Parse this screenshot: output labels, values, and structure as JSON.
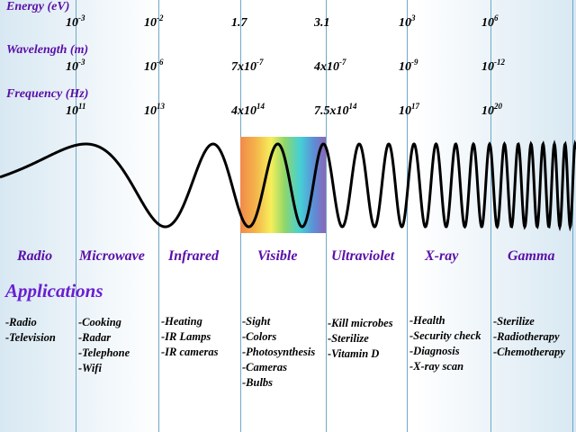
{
  "rows": {
    "energy": {
      "label": "Energy (eV)",
      "values": [
        {
          "base": "10",
          "exp": "-3"
        },
        {
          "base": "10",
          "exp": "-2"
        },
        {
          "base": "1.7",
          "exp": ""
        },
        {
          "base": "3.1",
          "exp": ""
        },
        {
          "base": "10",
          "exp": "3"
        },
        {
          "base": "10",
          "exp": "6"
        }
      ]
    },
    "wavelength": {
      "label": "Wavelength (m)",
      "values": [
        {
          "base": "10",
          "exp": "-3"
        },
        {
          "base": "10",
          "exp": "-6"
        },
        {
          "base": "7x10",
          "exp": "-7"
        },
        {
          "base": "4x10",
          "exp": "-7"
        },
        {
          "base": "10",
          "exp": "-9"
        },
        {
          "base": "10",
          "exp": "-12"
        }
      ]
    },
    "frequency": {
      "label": "Frequency (Hz)",
      "values": [
        {
          "base": "10",
          "exp": "11"
        },
        {
          "base": "10",
          "exp": "13"
        },
        {
          "base": "4x10",
          "exp": "14"
        },
        {
          "base": "7.5x10",
          "exp": "14"
        },
        {
          "base": "10",
          "exp": "17"
        },
        {
          "base": "10",
          "exp": "20"
        }
      ]
    }
  },
  "bands": [
    "Radio",
    "Microwave",
    "Infrared",
    "Visible",
    "Ultraviolet",
    "X-ray",
    "Gamma"
  ],
  "applications_heading": "Applications",
  "applications": [
    [
      "-Radio",
      "-Television"
    ],
    [
      "-Cooking",
      "-Radar",
      "-Telephone",
      "-Wifi"
    ],
    [
      "-Heating",
      "-IR Lamps",
      "-IR cameras"
    ],
    [
      "-Sight",
      "-Colors",
      "-Photosynthesis",
      "-Cameras",
      "-Bulbs"
    ],
    [
      "-Kill microbes",
      "-Sterilize",
      "-Vitamin D"
    ],
    [
      "-Health",
      "-Security check",
      "-Diagnosis",
      "-X-ray scan"
    ],
    [
      "-Sterilize",
      "-Radiotherapy",
      "-Chemotherapy"
    ]
  ],
  "colors": {
    "label_purple": "#5a0fa8",
    "heading_purple": "#6a1fd0",
    "divider_blue": "#6fa8c8",
    "wave_black": "#000000"
  }
}
